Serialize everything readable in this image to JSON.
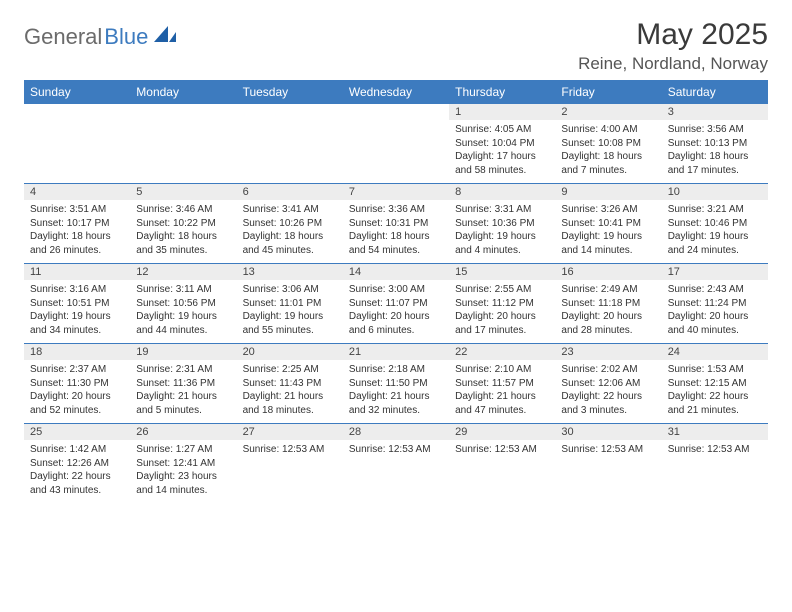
{
  "logo": {
    "text1": "General",
    "text2": "Blue"
  },
  "title": "May 2025",
  "location": "Reine, Nordland, Norway",
  "colors": {
    "brand": "#3d7bbf",
    "header_bg": "#3d7bbf",
    "header_text": "#ffffff",
    "daynum_bg": "#ededed",
    "rule": "#3d7bbf"
  },
  "day_names": [
    "Sunday",
    "Monday",
    "Tuesday",
    "Wednesday",
    "Thursday",
    "Friday",
    "Saturday"
  ],
  "weeks": [
    {
      "nums": [
        "",
        "",
        "",
        "",
        "1",
        "2",
        "3"
      ],
      "cells": [
        [],
        [],
        [],
        [],
        [
          "Sunrise: 4:05 AM",
          "Sunset: 10:04 PM",
          "Daylight: 17 hours",
          "and 58 minutes."
        ],
        [
          "Sunrise: 4:00 AM",
          "Sunset: 10:08 PM",
          "Daylight: 18 hours",
          "and 7 minutes."
        ],
        [
          "Sunrise: 3:56 AM",
          "Sunset: 10:13 PM",
          "Daylight: 18 hours",
          "and 17 minutes."
        ]
      ]
    },
    {
      "nums": [
        "4",
        "5",
        "6",
        "7",
        "8",
        "9",
        "10"
      ],
      "cells": [
        [
          "Sunrise: 3:51 AM",
          "Sunset: 10:17 PM",
          "Daylight: 18 hours",
          "and 26 minutes."
        ],
        [
          "Sunrise: 3:46 AM",
          "Sunset: 10:22 PM",
          "Daylight: 18 hours",
          "and 35 minutes."
        ],
        [
          "Sunrise: 3:41 AM",
          "Sunset: 10:26 PM",
          "Daylight: 18 hours",
          "and 45 minutes."
        ],
        [
          "Sunrise: 3:36 AM",
          "Sunset: 10:31 PM",
          "Daylight: 18 hours",
          "and 54 minutes."
        ],
        [
          "Sunrise: 3:31 AM",
          "Sunset: 10:36 PM",
          "Daylight: 19 hours",
          "and 4 minutes."
        ],
        [
          "Sunrise: 3:26 AM",
          "Sunset: 10:41 PM",
          "Daylight: 19 hours",
          "and 14 minutes."
        ],
        [
          "Sunrise: 3:21 AM",
          "Sunset: 10:46 PM",
          "Daylight: 19 hours",
          "and 24 minutes."
        ]
      ]
    },
    {
      "nums": [
        "11",
        "12",
        "13",
        "14",
        "15",
        "16",
        "17"
      ],
      "cells": [
        [
          "Sunrise: 3:16 AM",
          "Sunset: 10:51 PM",
          "Daylight: 19 hours",
          "and 34 minutes."
        ],
        [
          "Sunrise: 3:11 AM",
          "Sunset: 10:56 PM",
          "Daylight: 19 hours",
          "and 44 minutes."
        ],
        [
          "Sunrise: 3:06 AM",
          "Sunset: 11:01 PM",
          "Daylight: 19 hours",
          "and 55 minutes."
        ],
        [
          "Sunrise: 3:00 AM",
          "Sunset: 11:07 PM",
          "Daylight: 20 hours",
          "and 6 minutes."
        ],
        [
          "Sunrise: 2:55 AM",
          "Sunset: 11:12 PM",
          "Daylight: 20 hours",
          "and 17 minutes."
        ],
        [
          "Sunrise: 2:49 AM",
          "Sunset: 11:18 PM",
          "Daylight: 20 hours",
          "and 28 minutes."
        ],
        [
          "Sunrise: 2:43 AM",
          "Sunset: 11:24 PM",
          "Daylight: 20 hours",
          "and 40 minutes."
        ]
      ]
    },
    {
      "nums": [
        "18",
        "19",
        "20",
        "21",
        "22",
        "23",
        "24"
      ],
      "cells": [
        [
          "Sunrise: 2:37 AM",
          "Sunset: 11:30 PM",
          "Daylight: 20 hours",
          "and 52 minutes."
        ],
        [
          "Sunrise: 2:31 AM",
          "Sunset: 11:36 PM",
          "Daylight: 21 hours",
          "and 5 minutes."
        ],
        [
          "Sunrise: 2:25 AM",
          "Sunset: 11:43 PM",
          "Daylight: 21 hours",
          "and 18 minutes."
        ],
        [
          "Sunrise: 2:18 AM",
          "Sunset: 11:50 PM",
          "Daylight: 21 hours",
          "and 32 minutes."
        ],
        [
          "Sunrise: 2:10 AM",
          "Sunset: 11:57 PM",
          "Daylight: 21 hours",
          "and 47 minutes."
        ],
        [
          "Sunrise: 2:02 AM",
          "Sunset: 12:06 AM",
          "Daylight: 22 hours",
          "and 3 minutes."
        ],
        [
          "Sunrise: 1:53 AM",
          "Sunset: 12:15 AM",
          "Daylight: 22 hours",
          "and 21 minutes."
        ]
      ]
    },
    {
      "nums": [
        "25",
        "26",
        "27",
        "28",
        "29",
        "30",
        "31"
      ],
      "cells": [
        [
          "Sunrise: 1:42 AM",
          "Sunset: 12:26 AM",
          "Daylight: 22 hours",
          "and 43 minutes."
        ],
        [
          "Sunrise: 1:27 AM",
          "Sunset: 12:41 AM",
          "Daylight: 23 hours",
          "and 14 minutes."
        ],
        [
          "Sunrise: 12:53 AM"
        ],
        [
          "Sunrise: 12:53 AM"
        ],
        [
          "Sunrise: 12:53 AM"
        ],
        [
          "Sunrise: 12:53 AM"
        ],
        [
          "Sunrise: 12:53 AM"
        ]
      ]
    }
  ]
}
